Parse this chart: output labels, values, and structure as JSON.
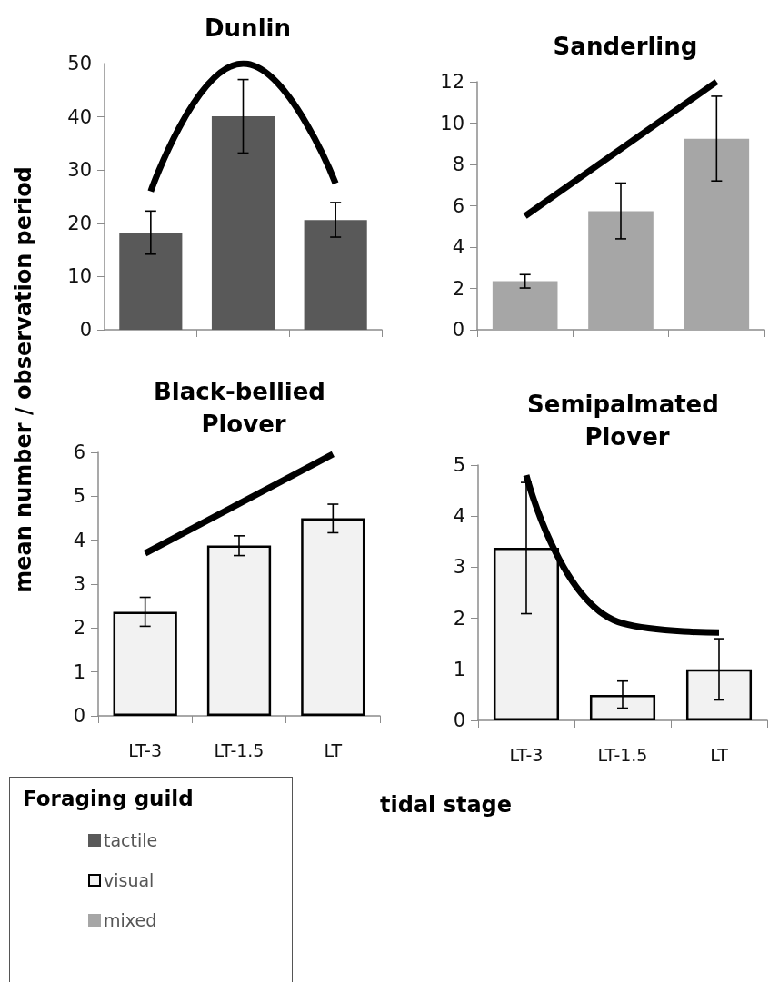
{
  "chart_data": [
    {
      "type": "bar",
      "title": "Dunlin",
      "ylabel": "mean number / observation period",
      "categories": [
        "LT-3",
        "LT-1.5",
        "LT"
      ],
      "ylim": [
        0,
        50
      ],
      "yticks": [
        0,
        10,
        20,
        30,
        40,
        50
      ],
      "tick_labels": "y",
      "grid": false,
      "legend": "bottom left",
      "series": [
        {
          "name": "tactile",
          "color": "#595959",
          "values": [
            18.2,
            40.1,
            20.6
          ],
          "errors": [
            [
              14.2,
              22.3
            ],
            [
              33.2,
              47.0
            ],
            [
              17.4,
              23.9
            ]
          ]
        },
        {
          "type": "line",
          "color": "#000000",
          "x": [
            "LT-3",
            "LT-1.5",
            "LT"
          ],
          "values": [
            26,
            50,
            27.5
          ],
          "marker": "none",
          "line_style": "solid"
        }
      ]
    },
    {
      "type": "bar",
      "title": "Sanderling",
      "categories": [
        "LT-3",
        "LT-1.5",
        "LT"
      ],
      "ylim": [
        0,
        12
      ],
      "yticks": [
        0,
        2,
        4,
        6,
        8,
        10,
        12
      ],
      "tick_labels": "y",
      "grid": false,
      "legend": "bottom left",
      "series": [
        {
          "name": "mixed",
          "color": "#a6a6a6",
          "values": [
            2.35,
            5.74,
            9.24
          ],
          "errors": [
            [
              2.02,
              2.67
            ],
            [
              4.4,
              7.1
            ],
            [
              7.2,
              11.3
            ]
          ]
        },
        {
          "type": "line",
          "color": "#000000",
          "x": [
            "LT-3",
            "LT"
          ],
          "values": [
            5.5,
            12
          ],
          "marker": "none",
          "line_style": "solid"
        }
      ]
    },
    {
      "type": "bar",
      "title": "Black-bellied Plover",
      "categories": [
        "LT-3",
        "LT-1.5",
        "LT"
      ],
      "ylim": [
        0,
        6
      ],
      "yticks": [
        0,
        1,
        2,
        3,
        4,
        5,
        6
      ],
      "grid": false,
      "legend": "bottom left",
      "legend_title": "Foraging guild",
      "series": [
        {
          "name": "visual",
          "color": "#f2f2f2",
          "values": [
            2.37,
            3.88,
            4.5
          ],
          "errors": [
            [
              2.04,
              2.7
            ],
            [
              3.65,
              4.1
            ],
            [
              4.17,
              4.82
            ]
          ]
        },
        {
          "type": "line",
          "color": "#000000",
          "x": [
            "LT-3",
            "LT"
          ],
          "values": [
            3.7,
            5.96
          ],
          "marker": "none",
          "line_style": "solid"
        }
      ]
    },
    {
      "type": "bar",
      "title": "Semipalmated Plover",
      "xlabel": "tidal stage",
      "categories": [
        "LT-3",
        "LT-1.5",
        "LT"
      ],
      "ylim": [
        0,
        5
      ],
      "yticks": [
        0,
        1,
        2,
        3,
        4,
        5
      ],
      "grid": false,
      "legend": false,
      "series": [
        {
          "color": "#f2f2f2",
          "values": [
            3.38,
            0.5,
            1.0
          ],
          "errors": [
            [
              2.09,
              4.66
            ],
            [
              0.24,
              0.77
            ],
            [
              0.4,
              1.6
            ]
          ]
        },
        {
          "type": "line",
          "color": "#000000",
          "x": [
            "LT-3",
            "LT-1.5",
            "LT"
          ],
          "values": [
            4.8,
            1.9,
            1.72
          ],
          "marker": "none",
          "line_style": "solid"
        }
      ]
    }
  ]
}
